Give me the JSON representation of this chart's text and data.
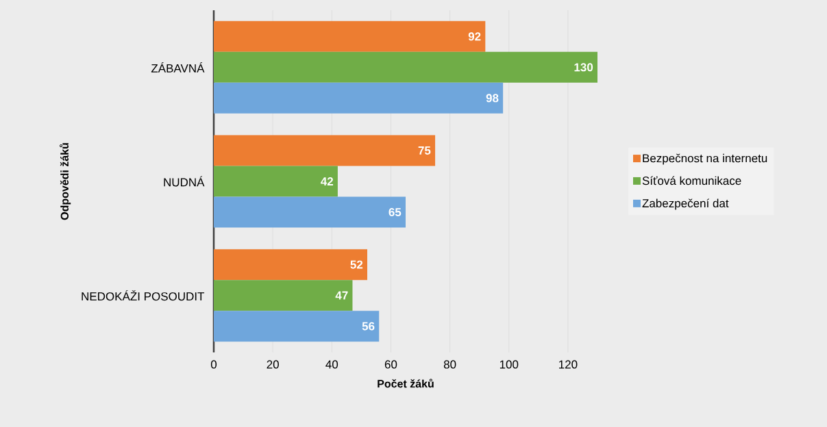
{
  "chart_data": {
    "type": "bar",
    "orientation": "horizontal",
    "xlabel": "Počet žáků",
    "ylabel": "Odpovědi žáků",
    "categories": [
      "ZÁBAVNÁ",
      "NUDNÁ",
      "NEDOKÁŽI POSOUDIT"
    ],
    "series": [
      {
        "name": "Bezpečnost na internetu",
        "color": "#ed7d31",
        "values": [
          92,
          75,
          52
        ]
      },
      {
        "name": "Síťová komunikace",
        "color": "#70ad47",
        "values": [
          130,
          42,
          47
        ]
      },
      {
        "name": "Zabezpečení dat",
        "color": "#6fa6dc",
        "values": [
          98,
          65,
          56
        ]
      }
    ],
    "xlim": [
      0,
      130
    ],
    "xticks": [
      0,
      20,
      40,
      60,
      80,
      100,
      120
    ],
    "grid": "x",
    "legend": "right",
    "data_labels": true
  }
}
